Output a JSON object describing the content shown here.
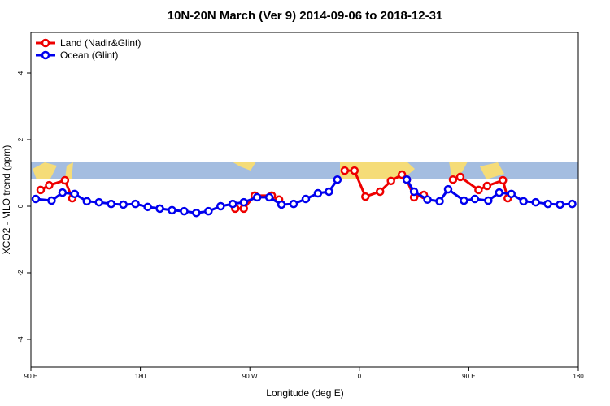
{
  "chart_data": {
    "type": "line",
    "title": "10N-20N March (Ver 9)   2014-09-06 to 2018-12-31",
    "xlabel": "Longitude (deg E)",
    "ylabel": "XCO2 - MLO trend (ppm)",
    "xlim": [
      90,
      540
    ],
    "xticks": [
      {
        "value": 90,
        "label": "90 E"
      },
      {
        "value": 180,
        "label": "180"
      },
      {
        "value": 270,
        "label": "90 W"
      },
      {
        "value": 360,
        "label": "0"
      },
      {
        "value": 450,
        "label": "90 E"
      },
      {
        "value": 540,
        "label": "180"
      }
    ],
    "ylim": [
      -4.83,
      5.22
    ],
    "yticks": [
      -4,
      -2,
      0,
      2,
      4
    ],
    "legend": "top-left",
    "series": [
      {
        "name": "Land (Nadir&Glint)",
        "color": "#ee0000",
        "x": [
          98,
          105,
          118,
          124,
          null,
          258,
          265,
          274,
          288,
          294,
          null,
          348,
          356,
          365,
          377,
          386,
          395,
          399,
          405,
          413,
          null,
          437,
          443,
          458,
          465,
          478,
          482
        ],
        "values": [
          0.49,
          0.63,
          0.78,
          0.24,
          null,
          -0.07,
          -0.07,
          0.32,
          0.32,
          0.2,
          null,
          1.07,
          1.07,
          0.29,
          0.44,
          0.76,
          0.95,
          0.8,
          0.27,
          0.34,
          null,
          0.8,
          0.88,
          0.49,
          0.61,
          0.78,
          0.24
        ]
      },
      {
        "name": "Ocean (Glint)",
        "color": "#0000ee",
        "x": [
          94,
          107,
          116,
          126,
          136,
          146,
          156,
          166,
          176,
          186,
          196,
          206,
          216,
          226,
          236,
          246,
          256,
          265,
          276,
          286,
          296,
          306,
          316,
          326,
          335,
          342,
          null,
          399,
          405,
          416,
          426,
          433,
          446,
          455,
          466,
          475,
          485,
          495,
          505,
          515,
          525,
          535
        ],
        "values": [
          0.22,
          0.17,
          0.41,
          0.37,
          0.15,
          0.12,
          0.07,
          0.05,
          0.07,
          -0.02,
          -0.07,
          -0.12,
          -0.15,
          -0.2,
          -0.15,
          0,
          0.07,
          0.12,
          0.27,
          0.27,
          0.05,
          0.07,
          0.22,
          0.39,
          0.44,
          0.8,
          null,
          0.8,
          0.44,
          0.2,
          0.15,
          0.51,
          0.17,
          0.22,
          0.17,
          0.41,
          0.37,
          0.15,
          0.12,
          0.07,
          0.05,
          0.07
        ]
      }
    ]
  }
}
